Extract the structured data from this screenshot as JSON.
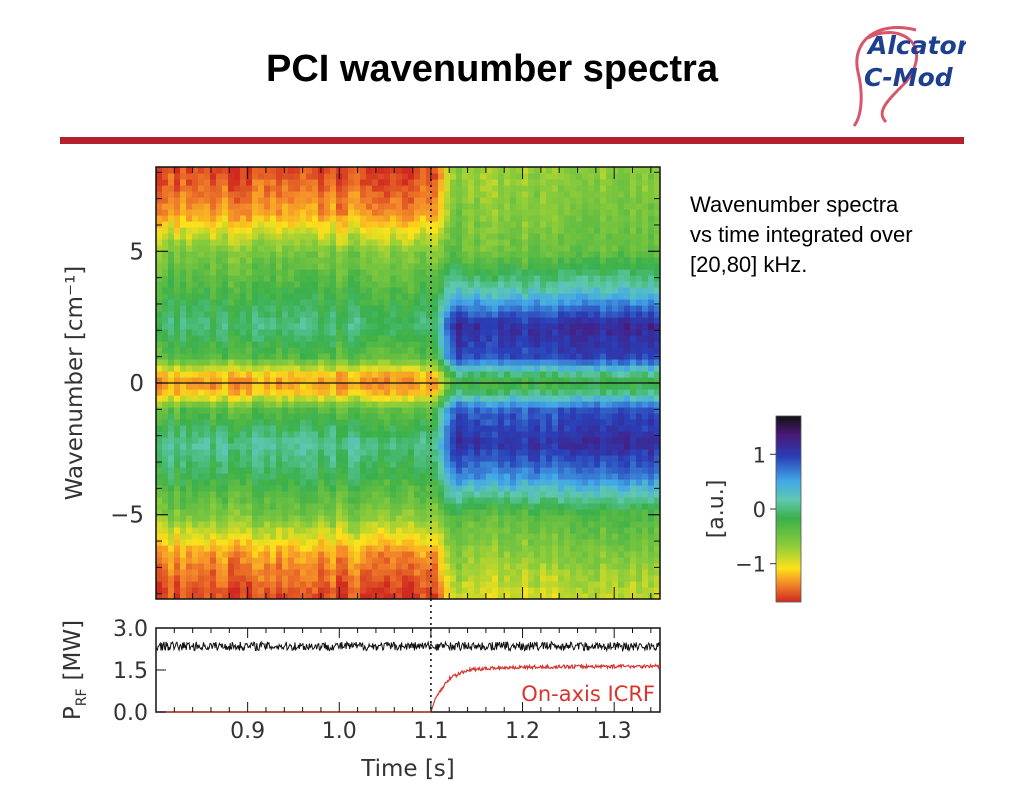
{
  "slide": {
    "title": "PCI wavenumber spectra",
    "logo_text_1": "Alcator",
    "logo_text_2": "C-Mod",
    "description_lines": [
      "Wavenumber spectra",
      "vs time integrated over",
      "[20,80] kHz."
    ]
  },
  "colors": {
    "rule": "#b3222a",
    "rf_trace": "#d9352c",
    "ref_trace": "#111111"
  },
  "chart_data": [
    {
      "type": "heatmap",
      "title": "",
      "xlabel": "",
      "ylabel": "Wavenumber [cm⁻¹]",
      "xlim": [
        0.8,
        1.35
      ],
      "ylim": [
        -8.2,
        8.2
      ],
      "yticks": [
        -5,
        0,
        5
      ],
      "ytick_labels": [
        "−5",
        "0",
        "5"
      ],
      "vline_time": 1.1,
      "colorbar": {
        "label": "[a.u.]",
        "ticks": [
          -1,
          0,
          1
        ],
        "tick_labels": [
          "−1",
          "0",
          "1"
        ],
        "range": [
          -1.7,
          1.7
        ]
      },
      "regions": [
        {
          "t_range": [
            0.8,
            1.1
          ],
          "k": [
            -8,
            -6.5,
            -5,
            -3.5,
            -2.3,
            -1,
            -0.3,
            0,
            0.3,
            1,
            2.2,
            3.5,
            5,
            6.5,
            8
          ],
          "value": [
            -1.6,
            -1.3,
            -0.6,
            -0.2,
            0.05,
            -0.4,
            -1.2,
            -1.3,
            -1.2,
            -0.4,
            -0.05,
            -0.3,
            -0.6,
            -1.3,
            -1.6
          ]
        },
        {
          "t_range": [
            1.13,
            1.35
          ],
          "k": [
            -8,
            -6.5,
            -5,
            -3.5,
            -2.3,
            -1,
            -0.3,
            0,
            0.3,
            1,
            2.2,
            3.5,
            5,
            6.5,
            8
          ],
          "value": [
            -0.9,
            -0.65,
            -0.4,
            0.6,
            1.1,
            0.8,
            -0.1,
            -0.3,
            -0.1,
            0.9,
            1.15,
            0.2,
            -0.5,
            -0.6,
            -0.7
          ]
        }
      ]
    },
    {
      "type": "line",
      "title": "",
      "xlabel": "Time [s]",
      "ylabel": "P_RF [MW]",
      "ylabel_main": "P",
      "ylabel_sub": "RF",
      "ylabel_unit": "[MW]",
      "xlim": [
        0.8,
        1.35
      ],
      "ylim": [
        0,
        3.0
      ],
      "xticks": [
        0.9,
        1.0,
        1.1,
        1.2,
        1.3
      ],
      "xtick_labels": [
        "0.9",
        "1.0",
        "1.1",
        "1.2",
        "1.3"
      ],
      "yticks": [
        0,
        1.5,
        3.0
      ],
      "ytick_labels": [
        "0.0",
        "1.5",
        "3.0"
      ],
      "annotation": "On-axis ICRF",
      "series": [
        {
          "x": [
            0.8,
            1.35
          ],
          "y": [
            2.35,
            2.35
          ]
        },
        {
          "x": [
            0.8,
            1.1,
            1.105,
            1.12,
            1.14,
            1.17,
            1.2,
            1.25,
            1.3,
            1.35
          ],
          "y": [
            0,
            0,
            0.5,
            1.2,
            1.5,
            1.58,
            1.6,
            1.62,
            1.63,
            1.64
          ]
        }
      ]
    }
  ]
}
